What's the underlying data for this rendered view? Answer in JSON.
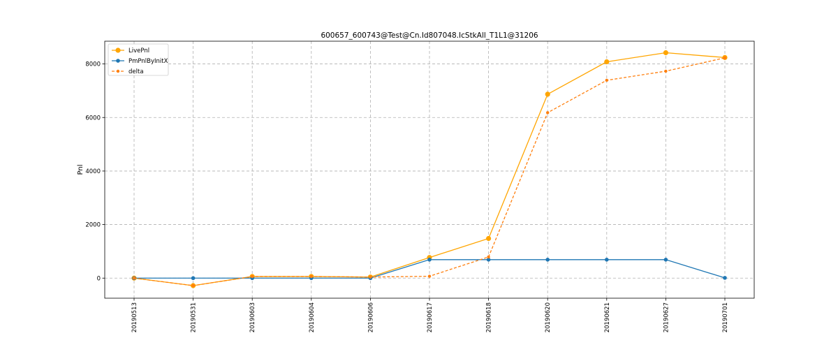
{
  "chart_data": {
    "type": "line",
    "title": "600657_600743@Test@Cn.Id807048.IcStkAll_T1L1@31206",
    "xlabel": "",
    "ylabel": "Pnl",
    "categories": [
      "20190513",
      "20190531",
      "20190603",
      "20190604",
      "20190606",
      "20190617",
      "20190618",
      "20190620",
      "20190621",
      "20190627",
      "20190701"
    ],
    "ylim": [
      -750,
      8850
    ],
    "yticks": [
      0,
      2000,
      4000,
      6000,
      8000
    ],
    "grid": true,
    "legend_position": "top-left",
    "series": [
      {
        "name": "LivePnl",
        "color": "#ffa500",
        "line_style": "solid",
        "marker": "circle-large",
        "values": [
          0,
          -280,
          60,
          60,
          40,
          770,
          1480,
          6870,
          8080,
          8420,
          8240
        ]
      },
      {
        "name": "PmPnlByInitX",
        "color": "#1f77b4",
        "line_style": "solid",
        "marker": "circle",
        "values": [
          0,
          0,
          0,
          0,
          0,
          690,
          690,
          690,
          690,
          690,
          10
        ]
      },
      {
        "name": "delta",
        "color": "#ff7f0e",
        "line_style": "dashed",
        "marker": "circle-small",
        "values": [
          0,
          -280,
          60,
          60,
          40,
          70,
          790,
          6180,
          7390,
          7730,
          8230
        ]
      }
    ]
  }
}
